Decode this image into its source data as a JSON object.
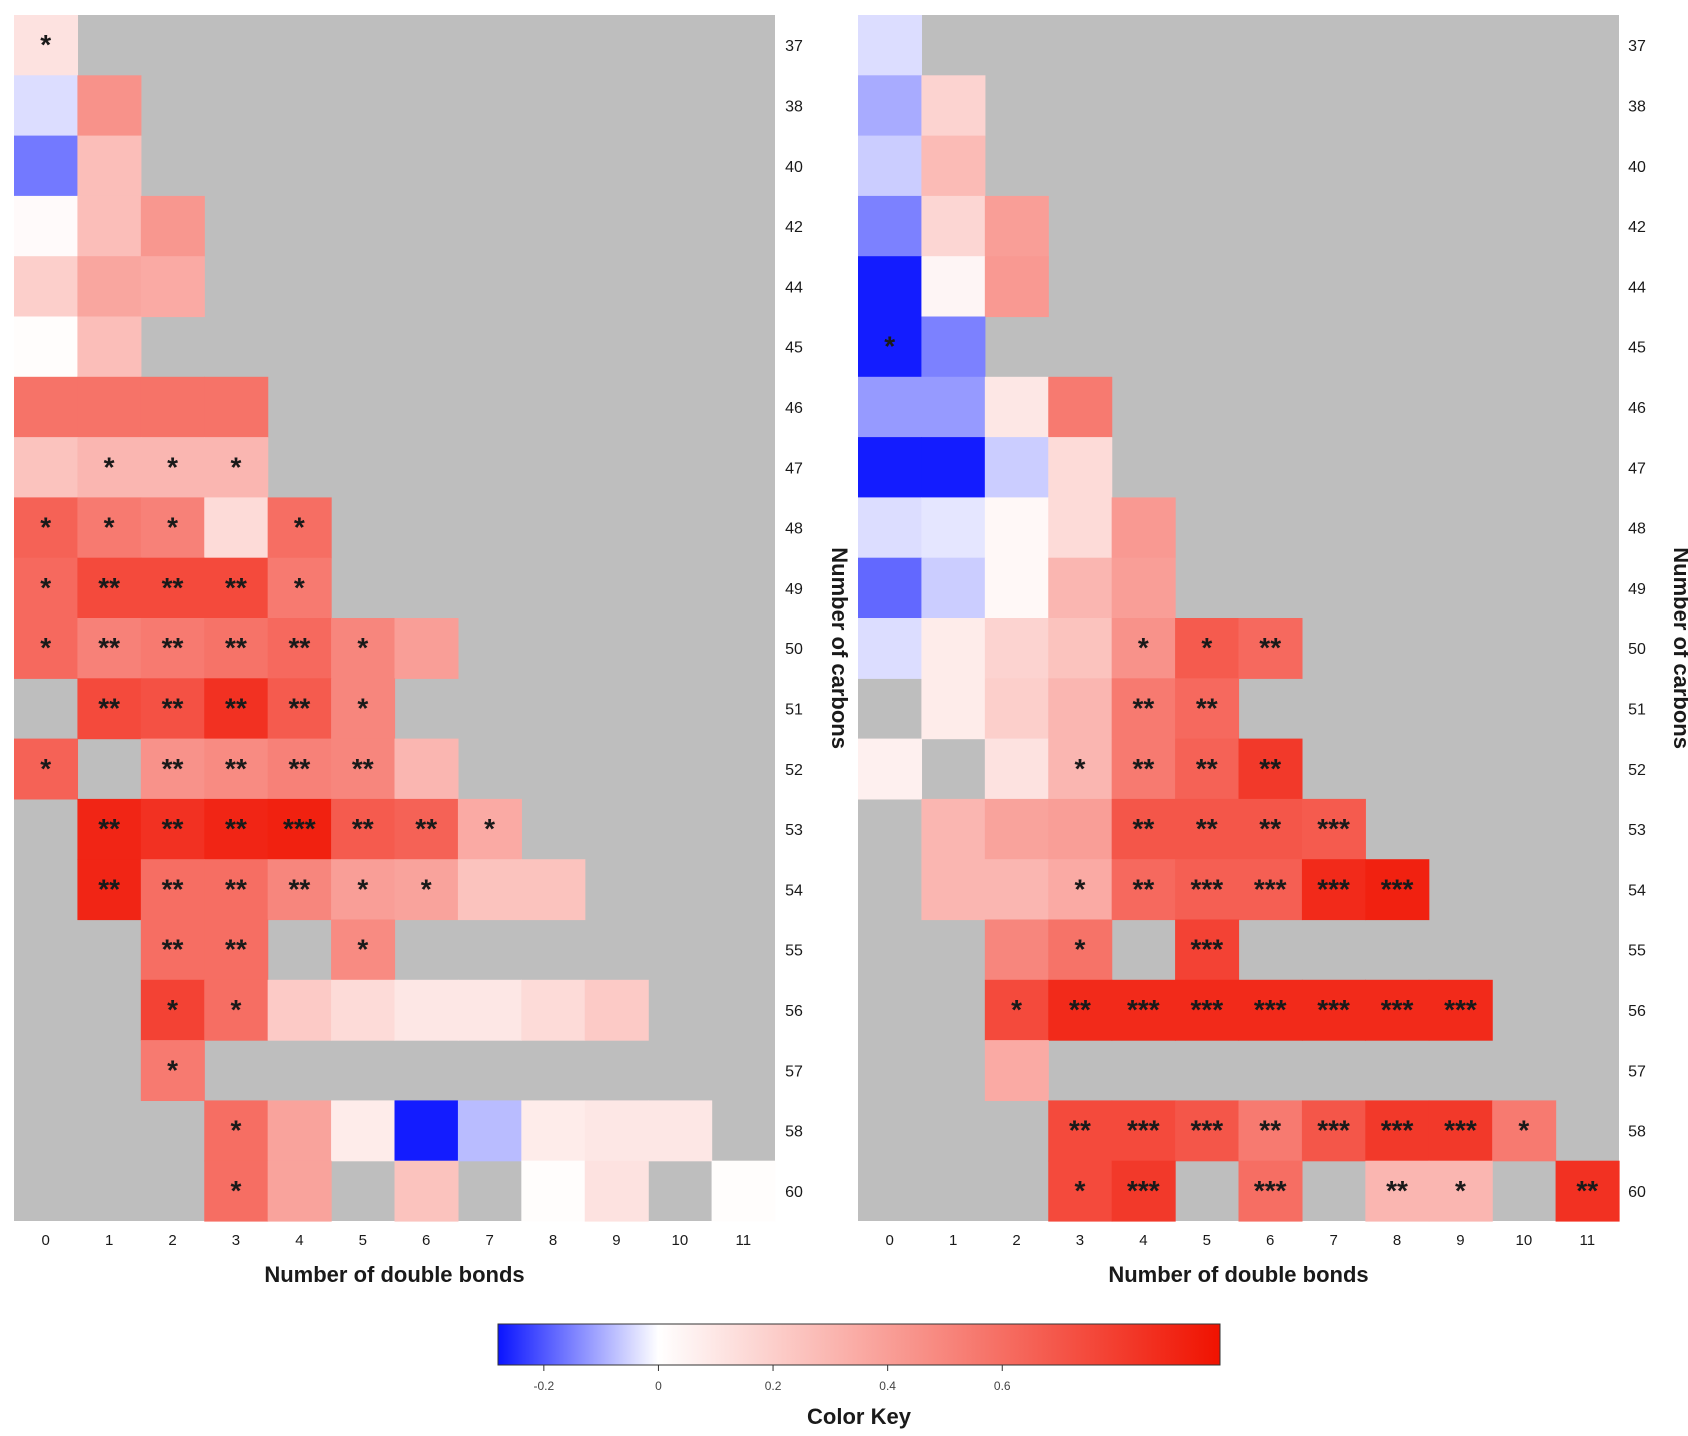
{
  "chart_data": [
    {
      "type": "heatmap",
      "xlabel": "Number of double bonds",
      "ylabel": "Number of carbons",
      "x": [
        "0",
        "1",
        "2",
        "3",
        "4",
        "5",
        "6",
        "7",
        "8",
        "9",
        "10",
        "11"
      ],
      "y": [
        "37",
        "38",
        "40",
        "42",
        "44",
        "45",
        "46",
        "47",
        "48",
        "49",
        "50",
        "51",
        "52",
        "53",
        "54",
        "55",
        "56",
        "57",
        "58",
        "60"
      ],
      "cells": [
        {
          "x": "0",
          "y": "37",
          "v": 0.12,
          "sig": "*"
        },
        {
          "x": "0",
          "y": "38",
          "v": -0.04
        },
        {
          "x": "1",
          "y": "38",
          "v": 0.45
        },
        {
          "x": "0",
          "y": "40",
          "v": -0.16
        },
        {
          "x": "1",
          "y": "40",
          "v": 0.27
        },
        {
          "x": "0",
          "y": "42",
          "v": 0.02
        },
        {
          "x": "1",
          "y": "42",
          "v": 0.27
        },
        {
          "x": "2",
          "y": "42",
          "v": 0.43
        },
        {
          "x": "0",
          "y": "44",
          "v": 0.2
        },
        {
          "x": "1",
          "y": "44",
          "v": 0.37
        },
        {
          "x": "2",
          "y": "44",
          "v": 0.35
        },
        {
          "x": "0",
          "y": "45",
          "v": 0.01
        },
        {
          "x": "1",
          "y": "45",
          "v": 0.27
        },
        {
          "x": "0",
          "y": "46",
          "v": 0.58
        },
        {
          "x": "1",
          "y": "46",
          "v": 0.58
        },
        {
          "x": "2",
          "y": "46",
          "v": 0.58
        },
        {
          "x": "3",
          "y": "46",
          "v": 0.58
        },
        {
          "x": "0",
          "y": "47",
          "v": 0.25
        },
        {
          "x": "1",
          "y": "47",
          "v": 0.3,
          "sig": "*"
        },
        {
          "x": "2",
          "y": "47",
          "v": 0.3,
          "sig": "*"
        },
        {
          "x": "3",
          "y": "47",
          "v": 0.3,
          "sig": "*"
        },
        {
          "x": "0",
          "y": "48",
          "v": 0.65,
          "sig": "*"
        },
        {
          "x": "1",
          "y": "48",
          "v": 0.55,
          "sig": "*"
        },
        {
          "x": "2",
          "y": "48",
          "v": 0.52,
          "sig": "*"
        },
        {
          "x": "3",
          "y": "48",
          "v": 0.15
        },
        {
          "x": "4",
          "y": "48",
          "v": 0.6,
          "sig": "*"
        },
        {
          "x": "0",
          "y": "49",
          "v": 0.62,
          "sig": "*"
        },
        {
          "x": "1",
          "y": "49",
          "v": 0.75,
          "sig": "**"
        },
        {
          "x": "2",
          "y": "49",
          "v": 0.75,
          "sig": "**"
        },
        {
          "x": "3",
          "y": "49",
          "v": 0.75,
          "sig": "**"
        },
        {
          "x": "4",
          "y": "49",
          "v": 0.55,
          "sig": "*"
        },
        {
          "x": "0",
          "y": "50",
          "v": 0.62,
          "sig": "*"
        },
        {
          "x": "1",
          "y": "50",
          "v": 0.52,
          "sig": "**"
        },
        {
          "x": "2",
          "y": "50",
          "v": 0.55,
          "sig": "**"
        },
        {
          "x": "3",
          "y": "50",
          "v": 0.58,
          "sig": "**"
        },
        {
          "x": "4",
          "y": "50",
          "v": 0.62,
          "sig": "**"
        },
        {
          "x": "5",
          "y": "50",
          "v": 0.5,
          "sig": "*"
        },
        {
          "x": "6",
          "y": "50",
          "v": 0.4
        },
        {
          "x": "1",
          "y": "51",
          "v": 0.75,
          "sig": "**"
        },
        {
          "x": "2",
          "y": "51",
          "v": 0.72,
          "sig": "**"
        },
        {
          "x": "3",
          "y": "51",
          "v": 0.85,
          "sig": "**"
        },
        {
          "x": "4",
          "y": "51",
          "v": 0.68,
          "sig": "**"
        },
        {
          "x": "5",
          "y": "51",
          "v": 0.5,
          "sig": "*"
        },
        {
          "x": "0",
          "y": "52",
          "v": 0.65,
          "sig": "*"
        },
        {
          "x": "2",
          "y": "52",
          "v": 0.45,
          "sig": "**"
        },
        {
          "x": "3",
          "y": "52",
          "v": 0.48,
          "sig": "**"
        },
        {
          "x": "4",
          "y": "52",
          "v": 0.52,
          "sig": "**"
        },
        {
          "x": "5",
          "y": "52",
          "v": 0.5,
          "sig": "**"
        },
        {
          "x": "6",
          "y": "52",
          "v": 0.3
        },
        {
          "x": "1",
          "y": "53",
          "v": 0.9,
          "sig": "**"
        },
        {
          "x": "2",
          "y": "53",
          "v": 0.85,
          "sig": "**"
        },
        {
          "x": "3",
          "y": "53",
          "v": 0.9,
          "sig": "**"
        },
        {
          "x": "4",
          "y": "53",
          "v": 0.92,
          "sig": "***"
        },
        {
          "x": "5",
          "y": "53",
          "v": 0.68,
          "sig": "**"
        },
        {
          "x": "6",
          "y": "53",
          "v": 0.65,
          "sig": "**"
        },
        {
          "x": "7",
          "y": "53",
          "v": 0.35,
          "sig": "*"
        },
        {
          "x": "1",
          "y": "54",
          "v": 0.9,
          "sig": "**"
        },
        {
          "x": "2",
          "y": "54",
          "v": 0.6,
          "sig": "**"
        },
        {
          "x": "3",
          "y": "54",
          "v": 0.6,
          "sig": "**"
        },
        {
          "x": "4",
          "y": "54",
          "v": 0.5,
          "sig": "**"
        },
        {
          "x": "5",
          "y": "54",
          "v": 0.4,
          "sig": "*"
        },
        {
          "x": "6",
          "y": "54",
          "v": 0.38,
          "sig": "*"
        },
        {
          "x": "7",
          "y": "54",
          "v": 0.25
        },
        {
          "x": "8",
          "y": "54",
          "v": 0.25
        },
        {
          "x": "2",
          "y": "55",
          "v": 0.6,
          "sig": "**"
        },
        {
          "x": "3",
          "y": "55",
          "v": 0.6,
          "sig": "**"
        },
        {
          "x": "5",
          "y": "55",
          "v": 0.48,
          "sig": "*"
        },
        {
          "x": "2",
          "y": "56",
          "v": 0.78,
          "sig": "*"
        },
        {
          "x": "3",
          "y": "56",
          "v": 0.6,
          "sig": "*"
        },
        {
          "x": "4",
          "y": "56",
          "v": 0.22
        },
        {
          "x": "5",
          "y": "56",
          "v": 0.15
        },
        {
          "x": "6",
          "y": "56",
          "v": 0.1
        },
        {
          "x": "7",
          "y": "56",
          "v": 0.1
        },
        {
          "x": "8",
          "y": "56",
          "v": 0.15
        },
        {
          "x": "9",
          "y": "56",
          "v": 0.22
        },
        {
          "x": "2",
          "y": "57",
          "v": 0.55,
          "sig": "*"
        },
        {
          "x": "3",
          "y": "58",
          "v": 0.6,
          "sig": "*"
        },
        {
          "x": "4",
          "y": "58",
          "v": 0.38
        },
        {
          "x": "5",
          "y": "58",
          "v": 0.08
        },
        {
          "x": "6",
          "y": "58",
          "v": -0.27
        },
        {
          "x": "7",
          "y": "58",
          "v": -0.08
        },
        {
          "x": "8",
          "y": "58",
          "v": 0.08
        },
        {
          "x": "9",
          "y": "58",
          "v": 0.1
        },
        {
          "x": "10",
          "y": "58",
          "v": 0.1
        },
        {
          "x": "3",
          "y": "60",
          "v": 0.6,
          "sig": "*"
        },
        {
          "x": "4",
          "y": "60",
          "v": 0.38
        },
        {
          "x": "6",
          "y": "60",
          "v": 0.25
        },
        {
          "x": "8",
          "y": "60",
          "v": 0.01
        },
        {
          "x": "9",
          "y": "60",
          "v": 0.12
        },
        {
          "x": "11",
          "y": "60",
          "v": 0.01
        }
      ]
    },
    {
      "type": "heatmap",
      "xlabel": "Number of double bonds",
      "ylabel": "Number of carbons",
      "x": [
        "0",
        "1",
        "2",
        "3",
        "4",
        "5",
        "6",
        "7",
        "8",
        "9",
        "10",
        "11"
      ],
      "y": [
        "37",
        "38",
        "40",
        "42",
        "44",
        "45",
        "46",
        "47",
        "48",
        "49",
        "50",
        "51",
        "52",
        "53",
        "54",
        "55",
        "56",
        "57",
        "58",
        "60"
      ],
      "cells": [
        {
          "x": "0",
          "y": "37",
          "v": -0.04
        },
        {
          "x": "0",
          "y": "38",
          "v": -0.1
        },
        {
          "x": "1",
          "y": "38",
          "v": 0.18
        },
        {
          "x": "0",
          "y": "40",
          "v": -0.06
        },
        {
          "x": "1",
          "y": "40",
          "v": 0.28
        },
        {
          "x": "0",
          "y": "42",
          "v": -0.15
        },
        {
          "x": "1",
          "y": "42",
          "v": 0.17
        },
        {
          "x": "2",
          "y": "42",
          "v": 0.4
        },
        {
          "x": "0",
          "y": "44",
          "v": -0.27
        },
        {
          "x": "1",
          "y": "44",
          "v": 0.04
        },
        {
          "x": "2",
          "y": "44",
          "v": 0.42
        },
        {
          "x": "0",
          "y": "45",
          "v": -0.27,
          "sig": "*"
        },
        {
          "x": "1",
          "y": "45",
          "v": -0.15
        },
        {
          "x": "0",
          "y": "46",
          "v": -0.12
        },
        {
          "x": "1",
          "y": "46",
          "v": -0.12
        },
        {
          "x": "2",
          "y": "46",
          "v": 0.1
        },
        {
          "x": "3",
          "y": "46",
          "v": 0.55
        },
        {
          "x": "0",
          "y": "47",
          "v": -0.27
        },
        {
          "x": "1",
          "y": "47",
          "v": -0.27
        },
        {
          "x": "2",
          "y": "47",
          "v": -0.06
        },
        {
          "x": "3",
          "y": "47",
          "v": 0.15
        },
        {
          "x": "0",
          "y": "48",
          "v": -0.04
        },
        {
          "x": "1",
          "y": "48",
          "v": -0.03
        },
        {
          "x": "2",
          "y": "48",
          "v": 0.03
        },
        {
          "x": "3",
          "y": "48",
          "v": 0.15
        },
        {
          "x": "4",
          "y": "48",
          "v": 0.42
        },
        {
          "x": "0",
          "y": "49",
          "v": -0.18
        },
        {
          "x": "1",
          "y": "49",
          "v": -0.06
        },
        {
          "x": "2",
          "y": "49",
          "v": 0.03
        },
        {
          "x": "3",
          "y": "49",
          "v": 0.3
        },
        {
          "x": "4",
          "y": "49",
          "v": 0.4
        },
        {
          "x": "0",
          "y": "50",
          "v": -0.04
        },
        {
          "x": "1",
          "y": "50",
          "v": 0.08
        },
        {
          "x": "2",
          "y": "50",
          "v": 0.18
        },
        {
          "x": "3",
          "y": "50",
          "v": 0.25
        },
        {
          "x": "4",
          "y": "50",
          "v": 0.45,
          "sig": "*"
        },
        {
          "x": "5",
          "y": "50",
          "v": 0.68,
          "sig": "*"
        },
        {
          "x": "6",
          "y": "50",
          "v": 0.62,
          "sig": "**"
        },
        {
          "x": "1",
          "y": "51",
          "v": 0.08
        },
        {
          "x": "2",
          "y": "51",
          "v": 0.2
        },
        {
          "x": "3",
          "y": "51",
          "v": 0.3
        },
        {
          "x": "4",
          "y": "51",
          "v": 0.55,
          "sig": "**"
        },
        {
          "x": "5",
          "y": "51",
          "v": 0.62,
          "sig": "**"
        },
        {
          "x": "0",
          "y": "52",
          "v": 0.06
        },
        {
          "x": "2",
          "y": "52",
          "v": 0.12
        },
        {
          "x": "3",
          "y": "52",
          "v": 0.3,
          "sig": "*"
        },
        {
          "x": "4",
          "y": "52",
          "v": 0.55,
          "sig": "**"
        },
        {
          "x": "5",
          "y": "52",
          "v": 0.65,
          "sig": "**"
        },
        {
          "x": "6",
          "y": "52",
          "v": 0.82,
          "sig": "**"
        },
        {
          "x": "1",
          "y": "53",
          "v": 0.3
        },
        {
          "x": "2",
          "y": "53",
          "v": 0.38
        },
        {
          "x": "3",
          "y": "53",
          "v": 0.4
        },
        {
          "x": "4",
          "y": "53",
          "v": 0.7,
          "sig": "**"
        },
        {
          "x": "5",
          "y": "53",
          "v": 0.7,
          "sig": "**"
        },
        {
          "x": "6",
          "y": "53",
          "v": 0.7,
          "sig": "**"
        },
        {
          "x": "7",
          "y": "53",
          "v": 0.68,
          "sig": "***"
        },
        {
          "x": "1",
          "y": "54",
          "v": 0.3
        },
        {
          "x": "2",
          "y": "54",
          "v": 0.3
        },
        {
          "x": "3",
          "y": "54",
          "v": 0.35,
          "sig": "*"
        },
        {
          "x": "4",
          "y": "54",
          "v": 0.62,
          "sig": "**"
        },
        {
          "x": "5",
          "y": "54",
          "v": 0.66,
          "sig": "***"
        },
        {
          "x": "6",
          "y": "54",
          "v": 0.66,
          "sig": "***"
        },
        {
          "x": "7",
          "y": "54",
          "v": 0.88,
          "sig": "***"
        },
        {
          "x": "8",
          "y": "54",
          "v": 0.92,
          "sig": "***"
        },
        {
          "x": "2",
          "y": "55",
          "v": 0.5
        },
        {
          "x": "3",
          "y": "55",
          "v": 0.58,
          "sig": "*"
        },
        {
          "x": "5",
          "y": "55",
          "v": 0.78,
          "sig": "***"
        },
        {
          "x": "2",
          "y": "56",
          "v": 0.75,
          "sig": "*"
        },
        {
          "x": "3",
          "y": "56",
          "v": 0.88,
          "sig": "**"
        },
        {
          "x": "4",
          "y": "56",
          "v": 0.88,
          "sig": "***"
        },
        {
          "x": "5",
          "y": "56",
          "v": 0.88,
          "sig": "***"
        },
        {
          "x": "6",
          "y": "56",
          "v": 0.88,
          "sig": "***"
        },
        {
          "x": "7",
          "y": "56",
          "v": 0.88,
          "sig": "***"
        },
        {
          "x": "8",
          "y": "56",
          "v": 0.88,
          "sig": "***"
        },
        {
          "x": "9",
          "y": "56",
          "v": 0.88,
          "sig": "***"
        },
        {
          "x": "2",
          "y": "57",
          "v": 0.35
        },
        {
          "x": "3",
          "y": "58",
          "v": 0.75,
          "sig": "**"
        },
        {
          "x": "4",
          "y": "58",
          "v": 0.75,
          "sig": "***"
        },
        {
          "x": "5",
          "y": "58",
          "v": 0.7,
          "sig": "***"
        },
        {
          "x": "6",
          "y": "58",
          "v": 0.55,
          "sig": "**"
        },
        {
          "x": "7",
          "y": "58",
          "v": 0.7,
          "sig": "***"
        },
        {
          "x": "8",
          "y": "58",
          "v": 0.82,
          "sig": "***"
        },
        {
          "x": "9",
          "y": "58",
          "v": 0.82,
          "sig": "***"
        },
        {
          "x": "10",
          "y": "58",
          "v": 0.55,
          "sig": "*"
        },
        {
          "x": "3",
          "y": "60",
          "v": 0.75,
          "sig": "*"
        },
        {
          "x": "4",
          "y": "60",
          "v": 0.82,
          "sig": "***"
        },
        {
          "x": "6",
          "y": "60",
          "v": 0.6,
          "sig": "***"
        },
        {
          "x": "8",
          "y": "60",
          "v": 0.3,
          "sig": "**"
        },
        {
          "x": "9",
          "y": "60",
          "v": 0.3,
          "sig": "*"
        },
        {
          "x": "11",
          "y": "60",
          "v": 0.85,
          "sig": "**"
        }
      ]
    }
  ],
  "color_key": {
    "title": "Color Key",
    "min": -0.28,
    "max": 0.98,
    "ticks": [
      {
        "value": -0.2,
        "label": "-0.2"
      },
      {
        "value": 0,
        "label": "0"
      },
      {
        "value": 0.2,
        "label": "0.2"
      },
      {
        "value": 0.4,
        "label": "0.4"
      },
      {
        "value": 0.6,
        "label": "0.6"
      }
    ],
    "colors": {
      "low": "#0a14ff",
      "mid": "#ffffff",
      "high": "#f01200"
    }
  },
  "colors": {
    "missing": "#bebebe",
    "star": "#1a1a1a",
    "text": "#1a1a1a"
  }
}
